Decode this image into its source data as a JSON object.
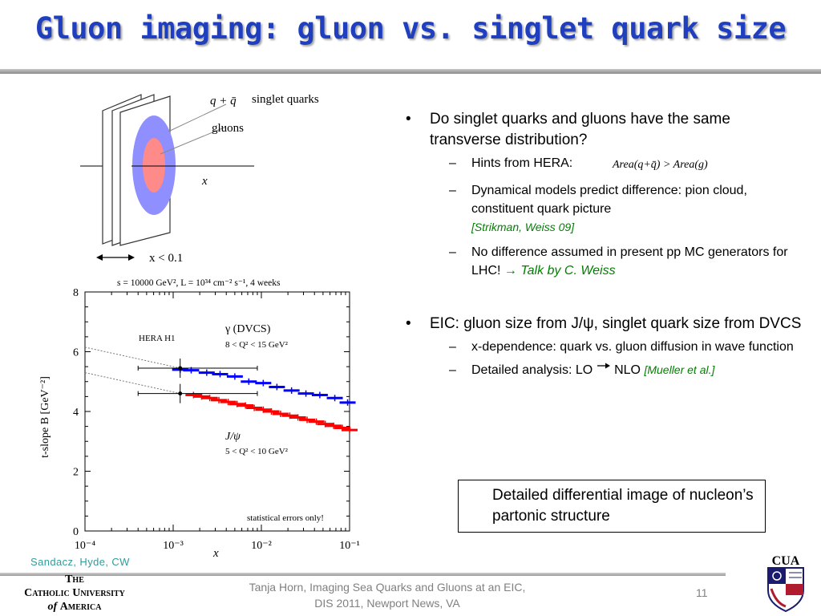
{
  "title": "Gluon imaging: gluon vs. singlet quark size",
  "bullets": {
    "b1": "Do singlet quarks and gluons have the same transverse distribution?",
    "b1_sub1": "Hints from HERA:",
    "formula": "Area(q+q̄) > Area(g)",
    "b1_sub2": "Dynamical models predict difference: pion cloud, constituent quark picture",
    "b1_sub2_ref": "[Strikman, Weiss 09]",
    "b1_sub3": "No difference assumed in present pp MC generators for LHC!",
    "b1_sub3_ref": "→ Talk by C. Weiss",
    "b2": "EIC: gluon size from J/ψ, singlet quark size from DVCS",
    "b2_sub1": "x-dependence: quark vs. gluon diffusion in wave function",
    "b2_sub2_a": "Detailed analysis: LO",
    "b2_sub2_b": "NLO",
    "b2_sub2_ref": "[Mueller et al.]",
    "bullet_char": "•",
    "dash_char": "–"
  },
  "callout": "Detailed differential image of nucleon’s partonic structure",
  "credit": "Sandacz, Hyde, CW",
  "footer": {
    "line1": "Tanja Horn, Imaging Sea Quarks and Gluons at an EIC,",
    "line2": "DIS 2011, Newport News, VA",
    "page": "11"
  },
  "logo": {
    "line1": "The",
    "line2": "Catholic University",
    "line3_italic": "of",
    "line3": "America",
    "shield_text": "CUA"
  },
  "diagram": {
    "label_q": "q + q̄",
    "label_singlet": "singlet quarks",
    "label_gluons": "gluons",
    "label_x": "x",
    "label_xrange": "x < 0.1",
    "outer_color": "#8f8fff",
    "inner_color": "#ff8a8a"
  },
  "chart_data": {
    "type": "scatter",
    "title": "s = 10000 GeV², L = 10³⁴ cm⁻² s⁻¹, 4 weeks",
    "xlabel": "x",
    "ylabel": "t-slope B [GeV⁻²]",
    "xscale": "log",
    "xlim": [
      0.0001,
      0.1
    ],
    "ylim": [
      0,
      8
    ],
    "xticks": [
      "10⁻⁴",
      "10⁻³",
      "10⁻²",
      "10⁻¹"
    ],
    "yticks": [
      "0",
      "2",
      "4",
      "6",
      "8"
    ],
    "annotation": "statistical errors only!",
    "series": [
      {
        "name": "γ (DVCS)",
        "label2": "8 < Q² < 15 GeV²",
        "color": "#0000ff",
        "x": [
          0.0012,
          0.0016,
          0.0024,
          0.0034,
          0.005,
          0.0072,
          0.0105,
          0.015,
          0.022,
          0.032,
          0.046,
          0.068,
          0.095
        ],
        "y": [
          5.4,
          5.38,
          5.3,
          5.25,
          5.17,
          5.0,
          4.95,
          4.82,
          4.7,
          4.6,
          4.55,
          4.45,
          4.3
        ]
      },
      {
        "name": "J/ψ",
        "label2": "5 < Q² < 10 GeV²",
        "color": "#ff0000",
        "x": [
          0.0017,
          0.0021,
          0.0026,
          0.0033,
          0.0042,
          0.0053,
          0.0066,
          0.0083,
          0.0105,
          0.013,
          0.0165,
          0.021,
          0.026,
          0.033,
          0.042,
          0.053,
          0.066,
          0.083,
          0.1
        ],
        "y": [
          4.55,
          4.5,
          4.45,
          4.38,
          4.32,
          4.25,
          4.2,
          4.12,
          4.06,
          4.0,
          3.92,
          3.86,
          3.8,
          3.72,
          3.66,
          3.58,
          3.52,
          3.45,
          3.38
        ]
      },
      {
        "name": "HERA H1",
        "color": "#000000",
        "x": [
          0.0012,
          0.0012
        ],
        "y": [
          5.45,
          4.6
        ]
      }
    ],
    "legend": [
      "HERA H1",
      "γ (DVCS)",
      "8 < Q² < 15 GeV²",
      "J/ψ",
      "5 < Q² < 10 GeV²"
    ]
  }
}
